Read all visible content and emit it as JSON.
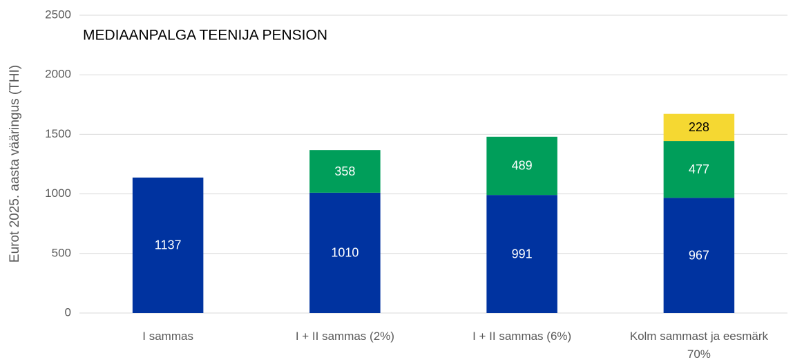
{
  "chart_data": {
    "type": "stacked_bar",
    "title": "MEDIAANPALGA TEENIJA PENSION",
    "y_label": "Eurot 2025. aasta vääringus (THI)",
    "categories": [
      "I sammas",
      "I + II sammas (2%)",
      "I + II sammas (6%)",
      "Kolm sammast ja eesmärk 70%"
    ],
    "series": [
      {
        "color": "#0033a0",
        "label_color": "#ffffff",
        "values": [
          1137,
          1010,
          991,
          967
        ]
      },
      {
        "color": "#009e5a",
        "label_color": "#ffffff",
        "values": [
          null,
          358,
          489,
          477
        ]
      },
      {
        "color": "#f5d832",
        "label_color": "#000000",
        "values": [
          null,
          null,
          null,
          228
        ]
      }
    ],
    "ylim": [
      0,
      2500
    ],
    "yticks": [
      0,
      500,
      1000,
      1500,
      2000,
      2500
    ],
    "grid": true
  }
}
